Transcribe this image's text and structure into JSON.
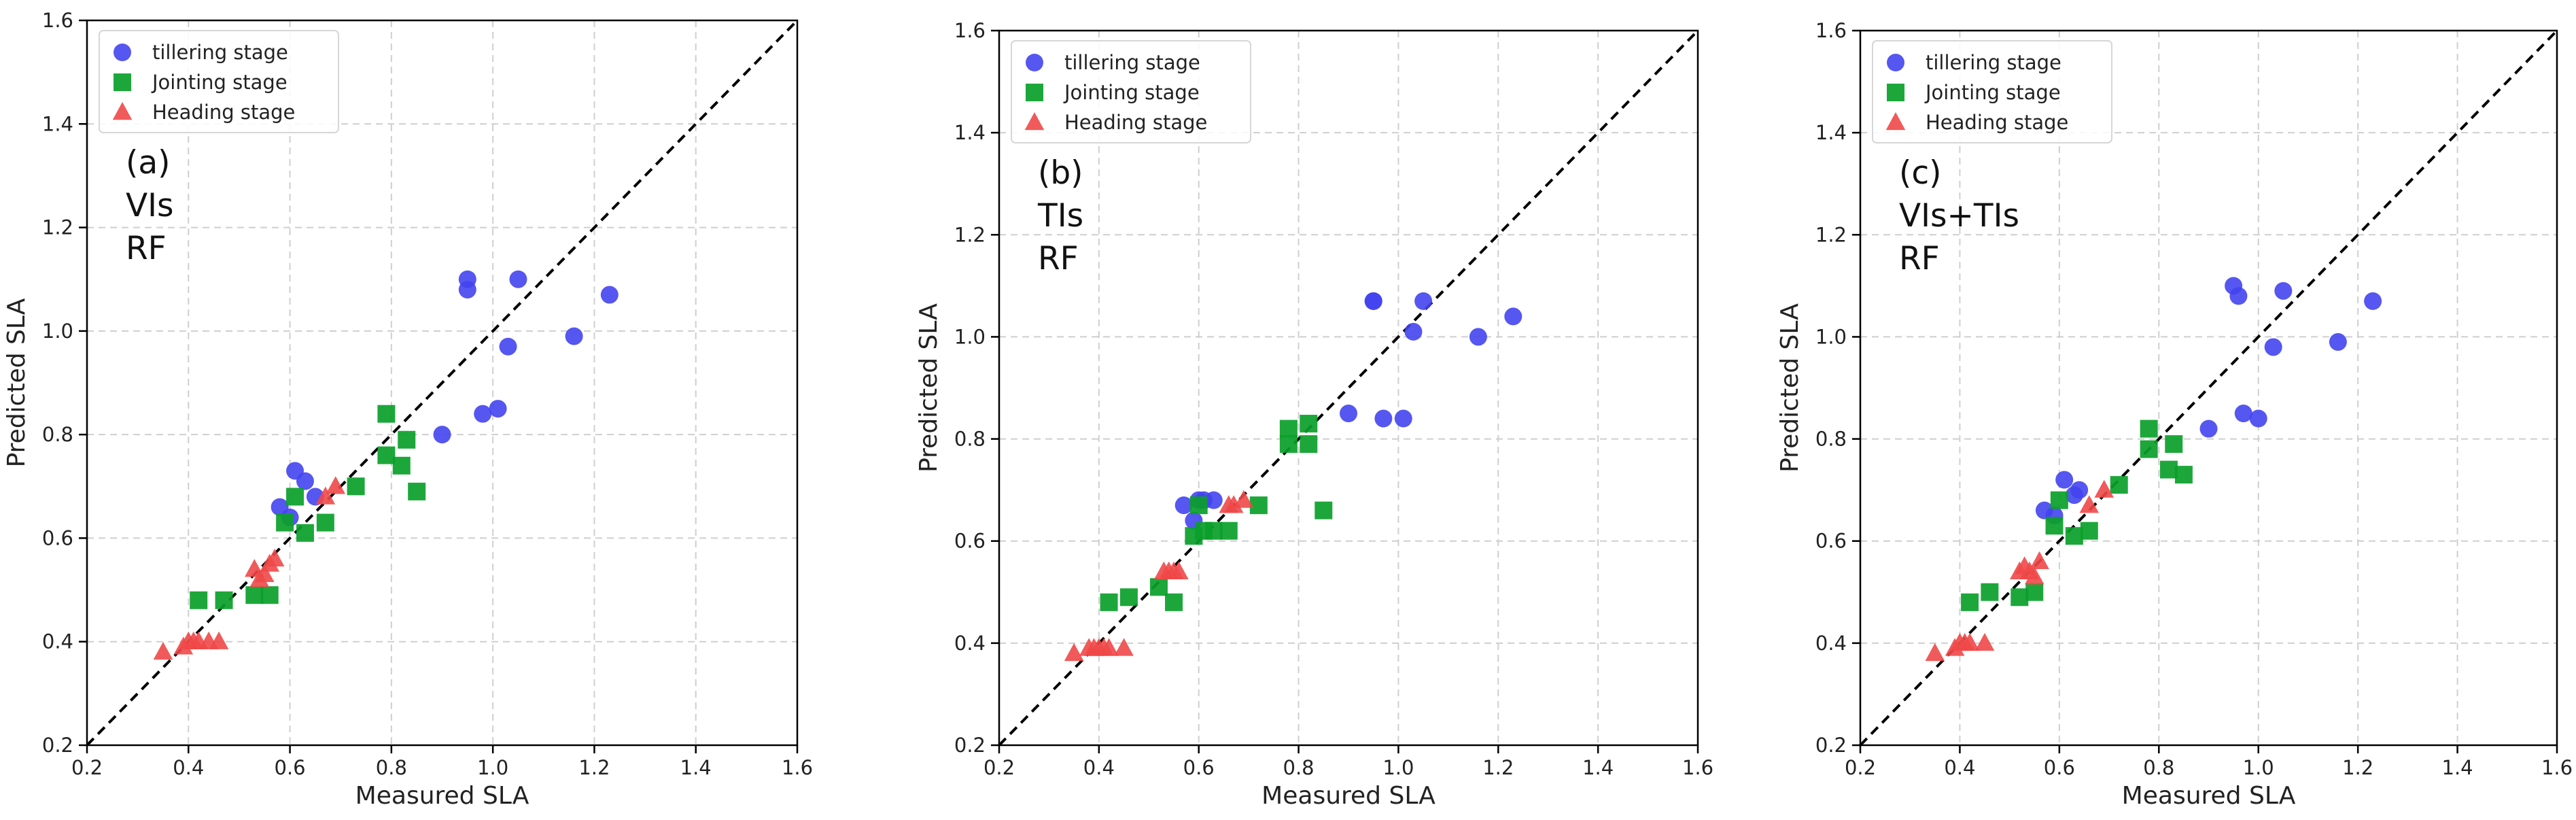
{
  "chart_data": [
    {
      "type": "scatter",
      "panel_label": [
        "(a)",
        "VIs",
        "RF"
      ],
      "xlabel": "Measured SLA",
      "ylabel": "Predicted SLA",
      "xlim": [
        0.2,
        1.6
      ],
      "ylim": [
        0.2,
        1.6
      ],
      "xticks": [
        "0.2",
        "0.4",
        "0.6",
        "0.8",
        "1.0",
        "1.2",
        "1.4",
        "1.6"
      ],
      "yticks": [
        "0.2",
        "0.4",
        "0.6",
        "0.8",
        "1.0",
        "1.2",
        "1.4",
        "1.6"
      ],
      "grid": true,
      "legend_position": "top-left",
      "reference_line": "1:1",
      "series": [
        {
          "name": "tillering stage",
          "marker": "circle",
          "color": "#4444f0",
          "points": [
            [
              0.58,
              0.66
            ],
            [
              0.6,
              0.64
            ],
            [
              0.61,
              0.73
            ],
            [
              0.63,
              0.71
            ],
            [
              0.65,
              0.68
            ],
            [
              0.95,
              1.1
            ],
            [
              0.95,
              1.08
            ],
            [
              1.05,
              1.1
            ],
            [
              1.23,
              1.07
            ],
            [
              1.16,
              0.99
            ],
            [
              1.03,
              0.97
            ],
            [
              0.9,
              0.8
            ],
            [
              0.98,
              0.84
            ],
            [
              1.01,
              0.85
            ]
          ]
        },
        {
          "name": "Jointing stage",
          "marker": "square",
          "color": "#0aa02a",
          "points": [
            [
              0.42,
              0.48
            ],
            [
              0.47,
              0.48
            ],
            [
              0.53,
              0.49
            ],
            [
              0.56,
              0.49
            ],
            [
              0.59,
              0.63
            ],
            [
              0.61,
              0.68
            ],
            [
              0.63,
              0.61
            ],
            [
              0.67,
              0.63
            ],
            [
              0.73,
              0.7
            ],
            [
              0.79,
              0.84
            ],
            [
              0.79,
              0.76
            ],
            [
              0.82,
              0.74
            ],
            [
              0.83,
              0.79
            ],
            [
              0.85,
              0.69
            ]
          ]
        },
        {
          "name": "Heading stage",
          "marker": "triangle",
          "color": "#f04848",
          "points": [
            [
              0.35,
              0.38
            ],
            [
              0.39,
              0.39
            ],
            [
              0.4,
              0.4
            ],
            [
              0.41,
              0.4
            ],
            [
              0.42,
              0.4
            ],
            [
              0.44,
              0.4
            ],
            [
              0.46,
              0.4
            ],
            [
              0.53,
              0.54
            ],
            [
              0.54,
              0.52
            ],
            [
              0.55,
              0.53
            ],
            [
              0.56,
              0.55
            ],
            [
              0.57,
              0.56
            ],
            [
              0.67,
              0.68
            ],
            [
              0.69,
              0.7
            ]
          ]
        }
      ]
    },
    {
      "type": "scatter",
      "panel_label": [
        "(b)",
        "TIs",
        "RF"
      ],
      "xlabel": "Measured SLA",
      "ylabel": "Predicted SLA",
      "xlim": [
        0.2,
        1.6
      ],
      "ylim": [
        0.2,
        1.6
      ],
      "xticks": [
        "0.2",
        "0.4",
        "0.6",
        "0.8",
        "1.0",
        "1.2",
        "1.4",
        "1.6"
      ],
      "yticks": [
        "0.2",
        "0.4",
        "0.6",
        "0.8",
        "1.0",
        "1.2",
        "1.4",
        "1.6"
      ],
      "grid": true,
      "legend_position": "top-left",
      "reference_line": "1:1",
      "series": [
        {
          "name": "tillering stage",
          "marker": "circle",
          "color": "#4444f0",
          "points": [
            [
              0.57,
              0.67
            ],
            [
              0.59,
              0.64
            ],
            [
              0.6,
              0.68
            ],
            [
              0.61,
              0.68
            ],
            [
              0.63,
              0.68
            ],
            [
              0.9,
              0.85
            ],
            [
              0.95,
              1.07
            ],
            [
              0.95,
              1.07
            ],
            [
              1.05,
              1.07
            ],
            [
              1.03,
              1.01
            ],
            [
              1.16,
              1.0
            ],
            [
              1.23,
              1.04
            ],
            [
              0.97,
              0.84
            ],
            [
              1.01,
              0.84
            ]
          ]
        },
        {
          "name": "Jointing stage",
          "marker": "square",
          "color": "#0aa02a",
          "points": [
            [
              0.42,
              0.48
            ],
            [
              0.46,
              0.49
            ],
            [
              0.52,
              0.51
            ],
            [
              0.55,
              0.48
            ],
            [
              0.59,
              0.61
            ],
            [
              0.6,
              0.67
            ],
            [
              0.61,
              0.62
            ],
            [
              0.63,
              0.62
            ],
            [
              0.66,
              0.62
            ],
            [
              0.72,
              0.67
            ],
            [
              0.78,
              0.82
            ],
            [
              0.78,
              0.79
            ],
            [
              0.82,
              0.83
            ],
            [
              0.82,
              0.79
            ],
            [
              0.85,
              0.66
            ]
          ]
        },
        {
          "name": "Heading stage",
          "marker": "triangle",
          "color": "#f04848",
          "points": [
            [
              0.35,
              0.38
            ],
            [
              0.38,
              0.39
            ],
            [
              0.39,
              0.39
            ],
            [
              0.4,
              0.39
            ],
            [
              0.41,
              0.39
            ],
            [
              0.42,
              0.39
            ],
            [
              0.45,
              0.39
            ],
            [
              0.53,
              0.54
            ],
            [
              0.54,
              0.54
            ],
            [
              0.55,
              0.54
            ],
            [
              0.56,
              0.54
            ],
            [
              0.66,
              0.67
            ],
            [
              0.67,
              0.67
            ],
            [
              0.69,
              0.68
            ]
          ]
        }
      ]
    },
    {
      "type": "scatter",
      "panel_label": [
        "(c)",
        "VIs+TIs",
        "RF"
      ],
      "xlabel": "Measured SLA",
      "ylabel": "Predicted SLA",
      "xlim": [
        0.2,
        1.6
      ],
      "ylim": [
        0.2,
        1.6
      ],
      "xticks": [
        "0.2",
        "0.4",
        "0.6",
        "0.8",
        "1.0",
        "1.2",
        "1.4",
        "1.6"
      ],
      "yticks": [
        "0.2",
        "0.4",
        "0.6",
        "0.8",
        "1.0",
        "1.2",
        "1.4",
        "1.6"
      ],
      "grid": true,
      "legend_position": "top-left",
      "reference_line": "1:1",
      "series": [
        {
          "name": "tillering stage",
          "marker": "circle",
          "color": "#4444f0",
          "points": [
            [
              0.57,
              0.66
            ],
            [
              0.59,
              0.65
            ],
            [
              0.61,
              0.72
            ],
            [
              0.63,
              0.69
            ],
            [
              0.64,
              0.7
            ],
            [
              0.95,
              1.1
            ],
            [
              0.96,
              1.08
            ],
            [
              1.05,
              1.09
            ],
            [
              1.23,
              1.07
            ],
            [
              1.16,
              0.99
            ],
            [
              1.03,
              0.98
            ],
            [
              0.9,
              0.82
            ],
            [
              0.97,
              0.85
            ],
            [
              1.0,
              0.84
            ]
          ]
        },
        {
          "name": "Jointing stage",
          "marker": "square",
          "color": "#0aa02a",
          "points": [
            [
              0.42,
              0.48
            ],
            [
              0.46,
              0.5
            ],
            [
              0.52,
              0.49
            ],
            [
              0.55,
              0.5
            ],
            [
              0.59,
              0.63
            ],
            [
              0.6,
              0.68
            ],
            [
              0.63,
              0.61
            ],
            [
              0.66,
              0.62
            ],
            [
              0.72,
              0.71
            ],
            [
              0.78,
              0.82
            ],
            [
              0.78,
              0.78
            ],
            [
              0.82,
              0.74
            ],
            [
              0.83,
              0.79
            ],
            [
              0.85,
              0.73
            ]
          ]
        },
        {
          "name": "Heading stage",
          "marker": "triangle",
          "color": "#f04848",
          "points": [
            [
              0.35,
              0.38
            ],
            [
              0.39,
              0.39
            ],
            [
              0.4,
              0.4
            ],
            [
              0.41,
              0.4
            ],
            [
              0.42,
              0.4
            ],
            [
              0.45,
              0.4
            ],
            [
              0.52,
              0.54
            ],
            [
              0.53,
              0.55
            ],
            [
              0.54,
              0.54
            ],
            [
              0.55,
              0.53
            ],
            [
              0.56,
              0.56
            ],
            [
              0.66,
              0.67
            ],
            [
              0.69,
              0.7
            ]
          ]
        }
      ]
    }
  ]
}
